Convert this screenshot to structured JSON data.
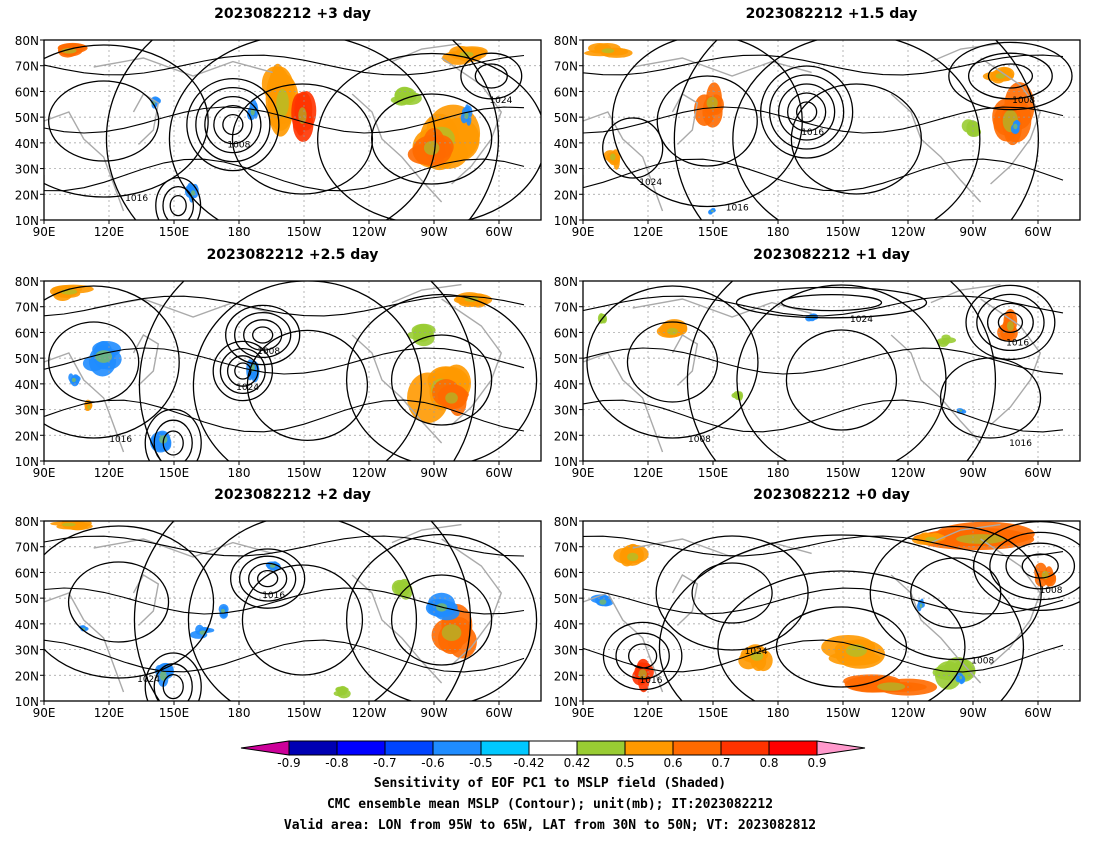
{
  "panels": [
    {
      "title": "2023082212  +3 day",
      "key": "p3"
    },
    {
      "title": "2023082212  +1.5 day",
      "key": "p15"
    },
    {
      "title": "2023082212  +2.5 day",
      "key": "p25"
    },
    {
      "title": "2023082212  +1 day",
      "key": "p1"
    },
    {
      "title": "2023082212  +2 day",
      "key": "p2"
    },
    {
      "title": "2023082212  +0 day",
      "key": "p0"
    }
  ],
  "axes": {
    "lat_labels": [
      "80N",
      "70N",
      "60N",
      "50N",
      "40N",
      "30N",
      "20N",
      "10N"
    ],
    "lon_labels": [
      "90E",
      "120E",
      "150E",
      "180",
      "150W",
      "120W",
      "90W",
      "60W"
    ],
    "lat_range": [
      10,
      80
    ],
    "lon_range_deg_east": [
      90,
      320
    ]
  },
  "contour_labels": [
    "1008",
    "1016",
    "1024"
  ],
  "colorbar": {
    "ticks": [
      "-0.9",
      "-0.8",
      "-0.7",
      "-0.6",
      "-0.5",
      "-0.42",
      "0.42",
      "0.5",
      "0.6",
      "0.7",
      "0.8",
      "0.9"
    ],
    "colors": [
      "#cc0099",
      "#0000b3",
      "#0000ff",
      "#0044ff",
      "#1f8cff",
      "#00c8ff",
      "#ffffff",
      "#99cc33",
      "#ff9900",
      "#ff6a00",
      "#ff3300",
      "#ff0000",
      "#ff99cc"
    ]
  },
  "footer": {
    "line1": "Sensitivity of EOF PC1 to MSLP field (Shaded)",
    "line2": "CMC ensemble mean MSLP (Contour); unit(mb); IT:2023082212",
    "line3": "Valid area: LON from 95W to 65W, LAT from 30N to 50N; VT: 2023082812"
  }
}
